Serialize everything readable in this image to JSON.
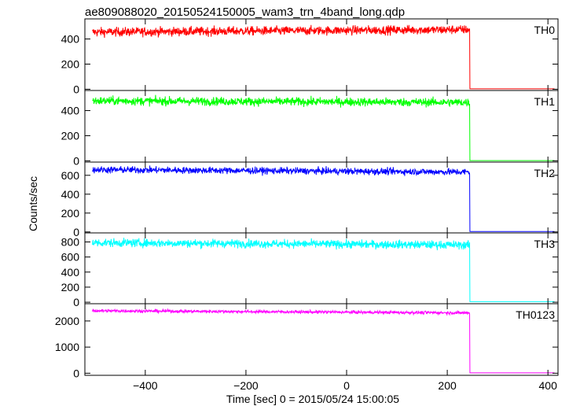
{
  "chart_data": {
    "type": "line",
    "title": "ae809088020_20150524150005_wam3_trn_4band_long.qdp",
    "xlabel": "Time [sec] 0 = 2015/05/24 15:00:05",
    "ylabel": "Counts/sec",
    "xlim": [
      -520,
      420
    ],
    "x_ticks": [
      -400,
      -200,
      0,
      200,
      400
    ],
    "x_tick_labels": [
      "−400",
      "−200",
      "0",
      "200",
      "400"
    ],
    "drop_time": 245,
    "time_start": -505,
    "grid": false,
    "legend": "none",
    "series": [
      {
        "name": "TH0",
        "color": "#ff0000",
        "ylim": [
          -10,
          560
        ],
        "yticks": [
          0,
          200,
          400
        ],
        "level_start": 455,
        "level_end": 475,
        "noise": 18,
        "after": 3
      },
      {
        "name": "TH1",
        "color": "#00ff00",
        "ylim": [
          -10,
          560
        ],
        "yticks": [
          0,
          200,
          400
        ],
        "level_start": 478,
        "level_end": 465,
        "noise": 17,
        "after": 2
      },
      {
        "name": "TH2",
        "color": "#0000ff",
        "ylim": [
          -10,
          740
        ],
        "yticks": [
          0,
          200,
          400,
          600
        ],
        "level_start": 660,
        "level_end": 635,
        "noise": 18,
        "after": 5
      },
      {
        "name": "TH3",
        "color": "#00ffff",
        "ylim": [
          -20,
          920
        ],
        "yticks": [
          0,
          200,
          400,
          600,
          800
        ],
        "level_start": 790,
        "level_end": 760,
        "noise": 28,
        "after": 8
      },
      {
        "name": "TH0123",
        "color": "#ff00ff",
        "ylim": [
          -80,
          2660
        ],
        "yticks": [
          0,
          1000,
          2000
        ],
        "level_start": 2390,
        "level_end": 2310,
        "noise": 30,
        "after": 15
      }
    ]
  }
}
